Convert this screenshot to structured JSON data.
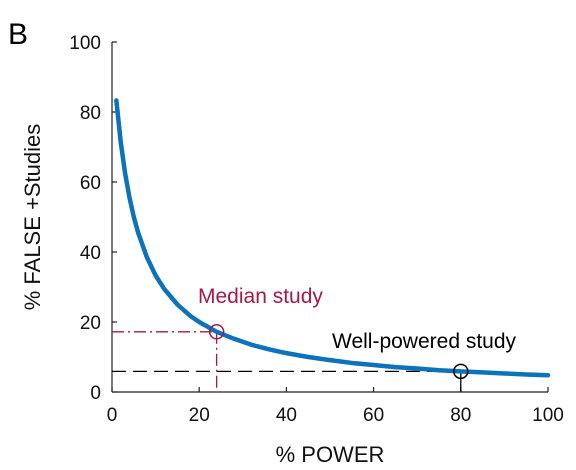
{
  "panel_label": "B",
  "colors": {
    "curve": "#0b72bb",
    "median": "#a31a47",
    "well": "#000000",
    "axis": "#222222"
  },
  "chart_data": {
    "type": "line",
    "title": "",
    "xlabel": "% POWER",
    "ylabel": "% FALSE +Studies",
    "xlim": [
      0,
      100
    ],
    "ylim": [
      0,
      100
    ],
    "xticks": [
      0,
      20,
      40,
      60,
      80,
      100
    ],
    "yticks": [
      0,
      20,
      40,
      60,
      80,
      100
    ],
    "grid": false,
    "series": [
      {
        "x": [
          1,
          2,
          3,
          4,
          5,
          6,
          8,
          10,
          12,
          15,
          18,
          20,
          24,
          28,
          32,
          36,
          40,
          45,
          50,
          55,
          60,
          65,
          70,
          75,
          80,
          85,
          90,
          95,
          100
        ],
        "y": [
          83.3,
          71.4,
          62.5,
          55.6,
          50.0,
          45.5,
          38.5,
          33.3,
          29.4,
          25.0,
          21.7,
          20.0,
          17.2,
          15.2,
          13.5,
          12.2,
          11.1,
          10.0,
          9.1,
          8.3,
          7.7,
          7.1,
          6.7,
          6.2,
          5.9,
          5.6,
          5.3,
          5.0,
          4.8
        ]
      }
    ],
    "annotations": [
      {
        "label": "Median study",
        "x": 24,
        "y": 17.2,
        "color": "#a31a47",
        "line_style": "dash-dot"
      },
      {
        "label": "Well-powered study",
        "x": 80,
        "y": 5.9,
        "color": "#000000",
        "line_style": "dashed"
      }
    ]
  }
}
